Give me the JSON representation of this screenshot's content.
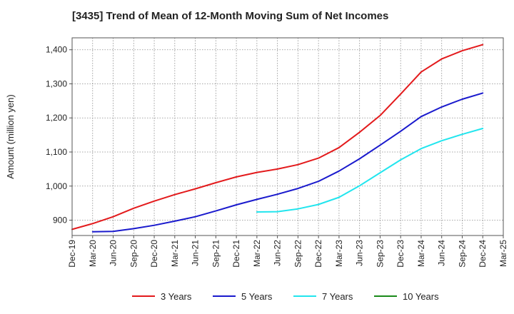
{
  "chart_data": {
    "type": "line",
    "title": "[3435]  Trend of Mean of 12-Month Moving Sum of Net Incomes",
    "xlabel": "",
    "ylabel": "Amount (million yen)",
    "ylim": [
      855,
      1435
    ],
    "yticks": [
      900,
      1000,
      1100,
      1200,
      1300,
      1400
    ],
    "ytick_labels": [
      "900",
      "1,000",
      "1,100",
      "1,200",
      "1,300",
      "1,400"
    ],
    "xtick_labels": [
      "Dec-19",
      "Mar-20",
      "Jun-20",
      "Sep-20",
      "Dec-20",
      "Mar-21",
      "Jun-21",
      "Sep-21",
      "Dec-21",
      "Mar-22",
      "Jun-22",
      "Sep-22",
      "Dec-22",
      "Mar-23",
      "Jun-23",
      "Sep-23",
      "Dec-23",
      "Mar-24",
      "Jun-24",
      "Sep-24",
      "Dec-24",
      "Mar-25"
    ],
    "grid": true,
    "legend_position": "bottom",
    "series": [
      {
        "name": "3 Years",
        "color": "#e31a1c",
        "x": [
          "Dec-19",
          "Mar-20",
          "Jun-20",
          "Sep-20",
          "Dec-20",
          "Mar-21",
          "Jun-21",
          "Sep-21",
          "Dec-21",
          "Mar-22",
          "Jun-22",
          "Sep-22",
          "Dec-22",
          "Mar-23",
          "Jun-23",
          "Sep-23",
          "Dec-23",
          "Mar-24",
          "Jun-24",
          "Sep-24",
          "Dec-24"
        ],
        "values": [
          873,
          890,
          910,
          935,
          956,
          975,
          992,
          1010,
          1027,
          1040,
          1050,
          1063,
          1082,
          1113,
          1158,
          1207,
          1270,
          1335,
          1373,
          1397,
          1415
        ]
      },
      {
        "name": "5 Years",
        "color": "#1a1acd",
        "x": [
          "Mar-20",
          "Jun-20",
          "Sep-20",
          "Dec-20",
          "Mar-21",
          "Jun-21",
          "Sep-21",
          "Dec-21",
          "Mar-22",
          "Jun-22",
          "Sep-22",
          "Dec-22",
          "Mar-23",
          "Jun-23",
          "Sep-23",
          "Dec-23",
          "Mar-24",
          "Jun-24",
          "Sep-24",
          "Dec-24"
        ],
        "values": [
          866,
          867,
          875,
          885,
          897,
          910,
          927,
          945,
          961,
          976,
          993,
          1014,
          1044,
          1080,
          1120,
          1161,
          1204,
          1232,
          1255,
          1273
        ]
      },
      {
        "name": "7 Years",
        "color": "#22e5ee",
        "x": [
          "Mar-22",
          "Jun-22",
          "Sep-22",
          "Dec-22",
          "Mar-23",
          "Jun-23",
          "Sep-23",
          "Dec-23",
          "Mar-24",
          "Jun-24",
          "Sep-24",
          "Dec-24"
        ],
        "values": [
          924,
          925,
          933,
          946,
          967,
          1001,
          1039,
          1077,
          1110,
          1133,
          1152,
          1169
        ]
      },
      {
        "name": "10 Years",
        "color": "#1a8a1a",
        "x": [],
        "values": []
      }
    ]
  }
}
